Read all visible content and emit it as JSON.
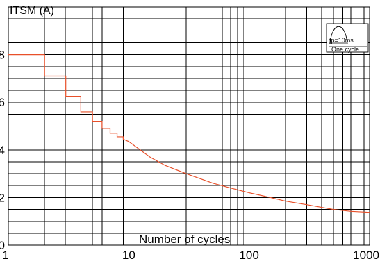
{
  "chart_data": {
    "type": "line",
    "title": "",
    "ylabel": "ITSM (A)",
    "xlabel": "Number of cycles",
    "x_scale": "log",
    "xlim": [
      1,
      1000
    ],
    "ylim": [
      0,
      10
    ],
    "x_ticks": [
      {
        "value": 1,
        "label": "1"
      },
      {
        "value": 10,
        "label": "10"
      },
      {
        "value": 100,
        "label": "100"
      },
      {
        "value": 1000,
        "label": "1000"
      }
    ],
    "y_ticks": [
      {
        "value": 0,
        "label": "0"
      },
      {
        "value": 2,
        "label": "2"
      },
      {
        "value": 4,
        "label": "4"
      },
      {
        "value": 6,
        "label": "6"
      },
      {
        "value": 8,
        "label": "8"
      }
    ],
    "grid": true,
    "series": [
      {
        "color": "#e8502a",
        "x": [
          1,
          2,
          2,
          3,
          3,
          4,
          4,
          5,
          5,
          6,
          6,
          7,
          7,
          8,
          8,
          9,
          9,
          10,
          15,
          20,
          30,
          50,
          70,
          100,
          150,
          200,
          300,
          500,
          700,
          1000
        ],
        "y": [
          8.0,
          8.0,
          7.1,
          7.1,
          6.25,
          6.25,
          5.6,
          5.6,
          5.2,
          5.2,
          4.9,
          4.9,
          4.7,
          4.7,
          4.55,
          4.55,
          4.45,
          4.35,
          3.7,
          3.35,
          3.0,
          2.6,
          2.4,
          2.2,
          2.0,
          1.85,
          1.7,
          1.5,
          1.42,
          1.38
        ]
      }
    ],
    "inset": {
      "label_tp": "tp=10ms",
      "label_cycle": "One cycle"
    }
  }
}
